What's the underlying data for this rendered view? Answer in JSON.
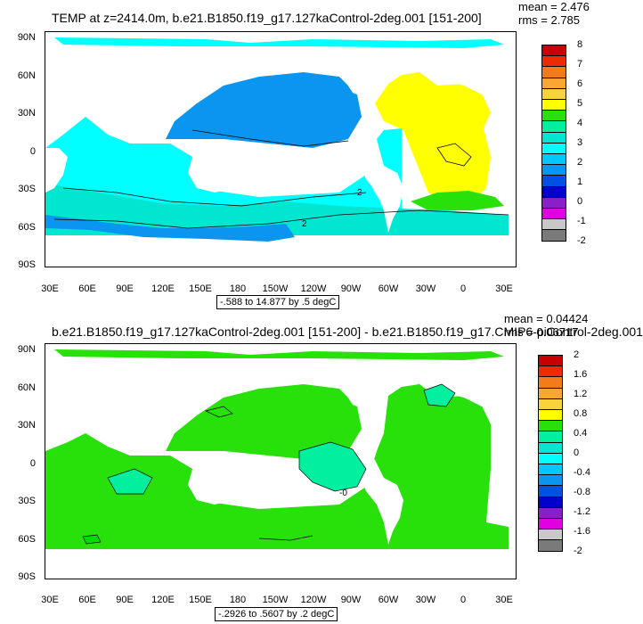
{
  "panels": [
    {
      "title": "TEMP at z=2414.0m, b.e21.B1850.f19_g17.127kaControl-2deg.001 [151-200]",
      "mean": "mean = 2.476",
      "rms": "rms = 2.785",
      "info": "-.588 to 14.877 by .5 degC",
      "yticks": [
        "90N",
        "60N",
        "30N",
        "0",
        "30S",
        "60S",
        "90S"
      ],
      "xticks": [
        "30E",
        "60E",
        "90E",
        "120E",
        "150E",
        "180",
        "150W",
        "120W",
        "90W",
        "60W",
        "30W",
        "0",
        "30E"
      ],
      "colorbar_labels": [
        "8",
        "7",
        "6",
        "5",
        "4",
        "3",
        "2",
        "1",
        "0",
        "-1",
        "-2"
      ],
      "colorbar_colors": [
        "#c80000",
        "#ee2a00",
        "#f57b18",
        "#f9a732",
        "#f9d33a",
        "#ffff00",
        "#28e10a",
        "#00f0a0",
        "#00e6d0",
        "#00ffff",
        "#00c8ff",
        "#0a96f0",
        "#0050e6",
        "#0000cc",
        "#8a1ec8",
        "#e100e1",
        "#c8c8c8",
        "#7a7a7a"
      ],
      "contour_labels": [
        "2",
        "2"
      ],
      "map_regions": {
        "ocean_base": "#00e6d0",
        "pacific": "#0a96f0",
        "atlantic": "#ffff00",
        "southern": "#00c8ff",
        "deep_south": "#0050e6"
      }
    },
    {
      "title": "b.e21.B1850.f19_g17.127kaControl-2deg.001 [151-200] - b.e21.B1850.f19_g17.CMIP6-piControl-2deg.001",
      "mean": "mean = 0.04424",
      "rms": "rms = 0.06717",
      "info": "-.2926 to .5607 by .2 degC",
      "yticks": [
        "90N",
        "60N",
        "30N",
        "0",
        "30S",
        "60S",
        "90S"
      ],
      "xticks": [
        "30E",
        "60E",
        "90E",
        "120E",
        "150E",
        "180",
        "150W",
        "120W",
        "90W",
        "60W",
        "30W",
        "0",
        "30E"
      ],
      "colorbar_labels": [
        "2",
        "1.6",
        "1.2",
        "0.8",
        "0.4",
        "0",
        "-0.4",
        "-0.8",
        "-1.2",
        "-1.6",
        "-2"
      ],
      "colorbar_colors": [
        "#c80000",
        "#ee2a00",
        "#f57b18",
        "#f9a732",
        "#f9d33a",
        "#ffff00",
        "#28e10a",
        "#00f0a0",
        "#00e6d0",
        "#00ffff",
        "#00c8ff",
        "#0a96f0",
        "#0050e6",
        "#0000cc",
        "#8a1ec8",
        "#e100e1",
        "#c8c8c8",
        "#7a7a7a"
      ],
      "contour_labels": [
        "-0"
      ],
      "map_regions": {
        "ocean_base": "#28e10a",
        "pacific": "#00f0a0",
        "atlantic": "#00f0a0"
      }
    }
  ]
}
